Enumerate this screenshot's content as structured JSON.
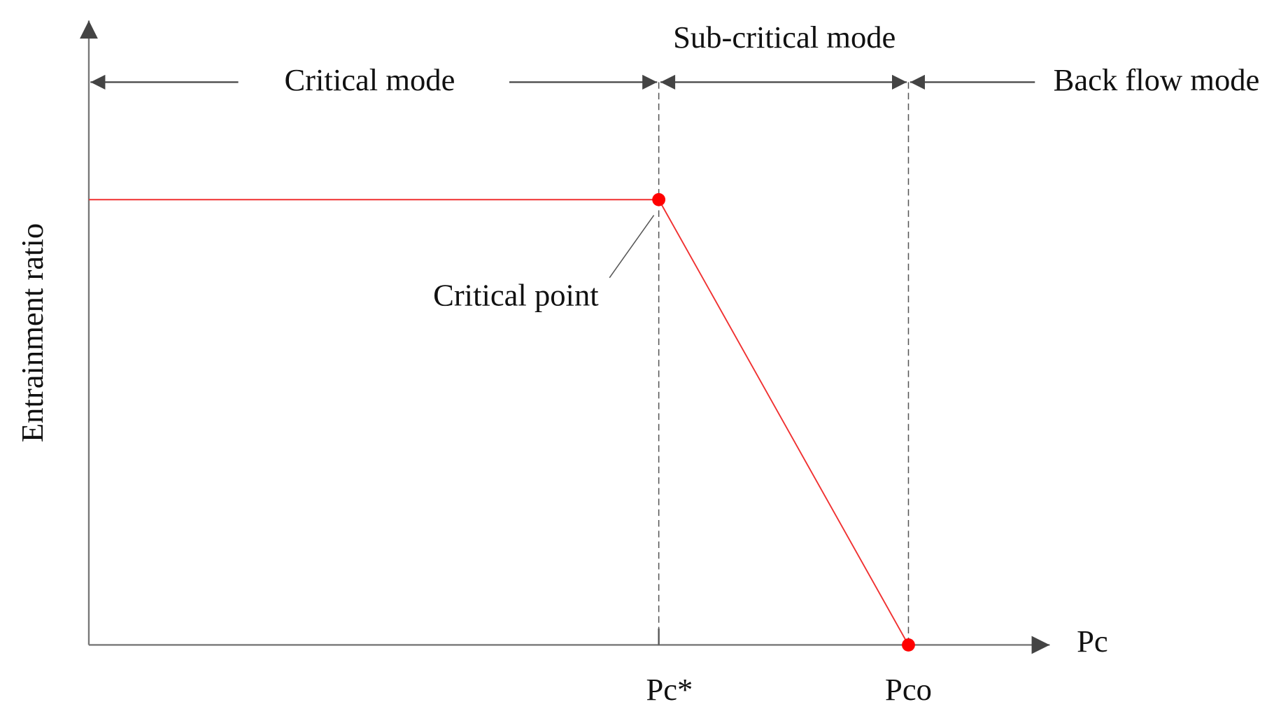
{
  "axes": {
    "y_label": "Entrainment ratio",
    "x_label": "Pc",
    "x_markers": [
      "Pc*",
      "Pco"
    ]
  },
  "regions": [
    "Critical mode",
    "Sub-critical mode",
    "Back flow mode"
  ],
  "annotation": "Critical point"
}
